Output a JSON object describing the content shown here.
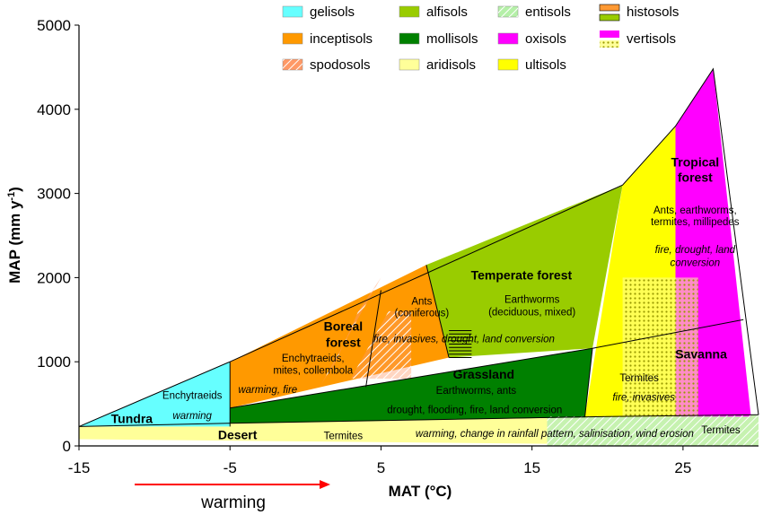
{
  "chart_data": {
    "type": "area",
    "xlabel": "MAT (°C)",
    "ylabel": "MAP (mm y-1)",
    "ylabel_parts": {
      "main": "MAP (mm y",
      "sup": "-1",
      "close": ")"
    },
    "xlim": [
      -15,
      30
    ],
    "ylim": [
      0,
      5000
    ],
    "x_ticks": [
      "-15",
      "-5",
      "5",
      "15",
      "25"
    ],
    "y_ticks": [
      "0",
      "1000",
      "2000",
      "3000",
      "4000",
      "5000"
    ],
    "warming_arrow": {
      "label": "warming",
      "color": "#ff0000"
    },
    "legend": [
      {
        "name": "gelisols",
        "color": "#66ffff",
        "pattern": "solid"
      },
      {
        "name": "alfisols",
        "color": "#99cc00",
        "pattern": "solid"
      },
      {
        "name": "entisols",
        "color": "#b5f0a8",
        "pattern": "hatch-diag"
      },
      {
        "name": "histosols",
        "color": "#ff9933",
        "pattern": "double-bar"
      },
      {
        "name": "inceptisols",
        "color": "#ff9900",
        "pattern": "solid"
      },
      {
        "name": "mollisols",
        "color": "#008000",
        "pattern": "solid"
      },
      {
        "name": "oxisols",
        "color": "#ff00ff",
        "pattern": "solid"
      },
      {
        "name": "vertisols",
        "color": "#ff00ff",
        "pattern": "double-dots"
      },
      {
        "name": "spodosols",
        "color": "#ff9966",
        "pattern": "hatch-diag"
      },
      {
        "name": "aridisols",
        "color": "#ffff99",
        "pattern": "solid"
      },
      {
        "name": "ultisols",
        "color": "#ffff00",
        "pattern": "solid"
      }
    ],
    "regions": [
      {
        "key": "desert",
        "fill": "#ffff99",
        "points": [
          [
            -15,
            80
          ],
          [
            -15,
            230
          ],
          [
            -5,
            230
          ],
          [
            -5,
            270
          ],
          [
            20,
            350
          ],
          [
            30,
            370
          ],
          [
            30,
            0
          ]
        ]
      },
      {
        "key": "entisol",
        "fill": "#c6f2b0",
        "points": [
          [
            16,
            0
          ],
          [
            16,
            350
          ],
          [
            30,
            370
          ],
          [
            30,
            0
          ]
        ]
      },
      {
        "key": "tundra",
        "fill": "#66ffff",
        "points": [
          [
            -15,
            230
          ],
          [
            -5,
            1000
          ],
          [
            -5,
            230
          ]
        ]
      },
      {
        "key": "grassland",
        "fill": "#008000",
        "points": [
          [
            -5,
            270
          ],
          [
            -5,
            450
          ],
          [
            19,
            1160
          ],
          [
            18.5,
            340
          ]
        ]
      },
      {
        "key": "inceptisol",
        "fill": "#ff9900",
        "points": [
          [
            -5,
            450
          ],
          [
            -5,
            1000
          ],
          [
            8,
            2150
          ],
          [
            9.5,
            1050
          ]
        ]
      },
      {
        "key": "alfisol",
        "fill": "#99cc00",
        "points": [
          [
            8,
            2150
          ],
          [
            21,
            3100
          ],
          [
            19,
            1160
          ],
          [
            9.5,
            1050
          ]
        ]
      },
      {
        "key": "ultisol",
        "fill": "#ffff00",
        "points": [
          [
            21,
            3100
          ],
          [
            24.5,
            3800
          ],
          [
            24.5,
            350
          ],
          [
            18.5,
            340
          ]
        ]
      },
      {
        "key": "oxisol",
        "fill": "#ff00ff",
        "points": [
          [
            24.5,
            3800
          ],
          [
            27,
            4480
          ],
          [
            29.5,
            350
          ],
          [
            24.5,
            350
          ]
        ]
      },
      {
        "key": "spodo",
        "fill": "#ff9966",
        "points": [
          [
            1,
            720
          ],
          [
            5,
            2000
          ],
          [
            3.5,
            1600
          ],
          [
            2,
            1000
          ]
        ],
        "pattern": "hatch-diag",
        "opacity": 0.5
      },
      {
        "key": "spodo2",
        "fill": "#ff9966",
        "points": [
          [
            3,
            800
          ],
          [
            5.5,
            1600
          ],
          [
            7,
            1600
          ],
          [
            7,
            800
          ]
        ],
        "pattern": "hatch-diag",
        "opacity": 0.4
      },
      {
        "key": "vertisol",
        "fill": "#ffff99",
        "points": [
          [
            21,
            350
          ],
          [
            21,
            2000
          ],
          [
            26,
            2000
          ],
          [
            26,
            350
          ]
        ],
        "pattern": "dots",
        "opacity": 0.55
      }
    ],
    "lines": [
      {
        "key": "upper-envelope",
        "points": [
          [
            -15,
            230
          ],
          [
            -5,
            1000
          ],
          [
            21,
            3100
          ],
          [
            24.5,
            3800
          ],
          [
            27,
            4480
          ],
          [
            30,
            370
          ]
        ]
      },
      {
        "key": "tundra-right",
        "points": [
          [
            -5,
            230
          ],
          [
            -5,
            1000
          ]
        ]
      },
      {
        "key": "grass-top",
        "points": [
          [
            -5,
            450
          ],
          [
            19,
            1160
          ]
        ]
      },
      {
        "key": "savanna-top",
        "points": [
          [
            19,
            1160
          ],
          [
            29,
            1500
          ]
        ]
      },
      {
        "key": "boreal-divide",
        "points": [
          [
            5,
            1850
          ],
          [
            4,
            700
          ]
        ]
      },
      {
        "key": "temperate-divide",
        "points": [
          [
            8,
            2150
          ],
          [
            9.5,
            1050
          ]
        ]
      },
      {
        "key": "grass-right",
        "points": [
          [
            19,
            1160
          ],
          [
            18.5,
            340
          ]
        ]
      },
      {
        "key": "desert-top",
        "points": [
          [
            -15,
            230
          ],
          [
            -5,
            270
          ],
          [
            20,
            350
          ],
          [
            30,
            370
          ]
        ]
      }
    ],
    "histosol_mark": {
      "x_range": [
        9.5,
        11
      ],
      "y_range": [
        1050,
        1400
      ]
    },
    "labels": [
      {
        "key": "tundra-title",
        "text": "Tundra",
        "x": -11.5,
        "y": 270,
        "class": "biome"
      },
      {
        "key": "tundra-fauna",
        "text": "Enchytraeids",
        "x": -7.5,
        "y": 560,
        "class": "fauna"
      },
      {
        "key": "tundra-threat",
        "text": "warming",
        "x": -7.5,
        "y": 320,
        "class": "threat"
      },
      {
        "key": "desert-title",
        "text": "Desert",
        "x": -4.5,
        "y": 80,
        "class": "biome"
      },
      {
        "key": "desert-fauna",
        "text": "Termites",
        "x": 2.5,
        "y": 80,
        "class": "fauna"
      },
      {
        "key": "desert-threat",
        "text": "warming, change in rainfall pattern, salinisation, wind erosion",
        "x": 16.5,
        "y": 105,
        "class": "threat"
      },
      {
        "key": "savanna-termites",
        "text": "Termites",
        "x": 27.5,
        "y": 150,
        "class": "fauna"
      },
      {
        "key": "boreal-title-1",
        "text": "Boreal",
        "x": 2.5,
        "y": 1370,
        "class": "biome"
      },
      {
        "key": "boreal-title-2",
        "text": "forest",
        "x": 2.5,
        "y": 1180,
        "class": "biome"
      },
      {
        "key": "boreal-fauna-1",
        "text": "Enchytraeids,",
        "x": 0.5,
        "y": 1000,
        "class": "fauna"
      },
      {
        "key": "boreal-fauna-2",
        "text": "mites, collembola",
        "x": 0.5,
        "y": 860,
        "class": "fauna"
      },
      {
        "key": "boreal-threat",
        "text": "warming,  fire",
        "x": -2.5,
        "y": 630,
        "class": "threat"
      },
      {
        "key": "ants-1",
        "text": "Ants",
        "x": 7.7,
        "y": 1680,
        "class": "fauna"
      },
      {
        "key": "ants-2",
        "text": "(coniferous)",
        "x": 7.7,
        "y": 1540,
        "class": "fauna"
      },
      {
        "key": "temperate-title",
        "text": "Temperate forest",
        "x": 14.3,
        "y": 1980,
        "class": "biome"
      },
      {
        "key": "temperate-fauna-1",
        "text": "Earthworms",
        "x": 15,
        "y": 1700,
        "class": "fauna"
      },
      {
        "key": "temperate-fauna-2",
        "text": "(deciduous, mixed)",
        "x": 15,
        "y": 1550,
        "class": "fauna"
      },
      {
        "key": "temperate-threat",
        "text": "fire, invasives, drought, land conversion",
        "x": 10.5,
        "y": 1230,
        "class": "threat"
      },
      {
        "key": "grassland-title",
        "text": "Grassland",
        "x": 11.8,
        "y": 800,
        "class": "biome"
      },
      {
        "key": "grassland-fauna",
        "text": "Earthworms, ants",
        "x": 11.3,
        "y": 620,
        "class": "fauna"
      },
      {
        "key": "grassland-threat",
        "text": "drought, flooding, fire, land conversion",
        "x": 11.2,
        "y": 390,
        "class": "fauna"
      },
      {
        "key": "tropical-title-1",
        "text": "Tropical",
        "x": 25.8,
        "y": 3320,
        "class": "biome"
      },
      {
        "key": "tropical-title-2",
        "text": "forest",
        "x": 25.8,
        "y": 3140,
        "class": "biome"
      },
      {
        "key": "tropical-fauna-1",
        "text": "Ants, earthworms,",
        "x": 25.8,
        "y": 2760,
        "class": "fauna"
      },
      {
        "key": "tropical-fauna-2",
        "text": "termites, millipedes",
        "x": 25.8,
        "y": 2620,
        "class": "fauna"
      },
      {
        "key": "tropical-threat-1",
        "text": "fire,  drought,  land",
        "x": 25.8,
        "y": 2290,
        "class": "threat"
      },
      {
        "key": "tropical-threat-2",
        "text": "conversion",
        "x": 25.8,
        "y": 2140,
        "class": "threat"
      },
      {
        "key": "savanna-title",
        "text": "Savanna",
        "x": 26.2,
        "y": 1040,
        "class": "biome"
      },
      {
        "key": "savanna-fauna",
        "text": "Termites",
        "x": 22.1,
        "y": 770,
        "class": "fauna"
      },
      {
        "key": "savanna-threat",
        "text": "fire, invasives",
        "x": 22.4,
        "y": 540,
        "class": "threat"
      }
    ]
  }
}
